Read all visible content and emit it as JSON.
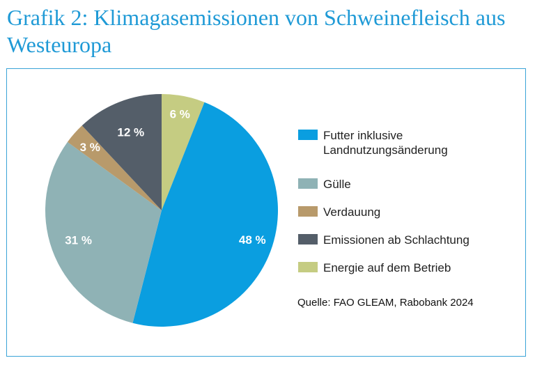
{
  "title": "Grafik 2: Klimagasemissionen von Schweinefleisch aus Westeuropa",
  "source": "Quelle: FAO GLEAM, Rabobank 2024",
  "chart_data": {
    "type": "pie",
    "title": "Grafik 2: Klimagasemissionen von Schweinefleisch aus Westeuropa",
    "unit": "%",
    "legend_position": "right",
    "slices": [
      {
        "label": "Futter inklusive Landnutzungsänderung",
        "legend_lines": [
          "Futter inklusive",
          "Landnutzungsänderung"
        ],
        "value": 48,
        "value_label": "48 %",
        "color": "#0a9ee0"
      },
      {
        "label": "Gülle",
        "legend_lines": [
          "Gülle"
        ],
        "value": 31,
        "value_label": "31 %",
        "color": "#8fb2b5"
      },
      {
        "label": "Verdauung",
        "legend_lines": [
          "Verdauung"
        ],
        "value": 3,
        "value_label": "3 %",
        "color": "#b89a6b"
      },
      {
        "label": "Emissionen ab Schlachtung",
        "legend_lines": [
          "Emissionen ab Schlachtung"
        ],
        "value": 12,
        "value_label": "12 %",
        "color": "#545e69"
      },
      {
        "label": "Energie auf dem Betrieb",
        "legend_lines": [
          "Energie auf dem Betrieb"
        ],
        "value": 6,
        "value_label": "6 %",
        "color": "#c5cc82"
      }
    ]
  }
}
